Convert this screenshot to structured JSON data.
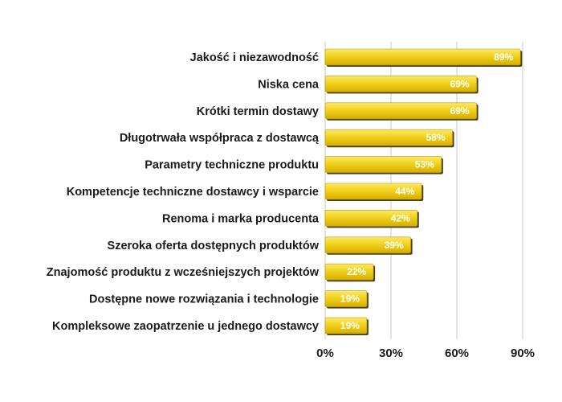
{
  "chart_data": {
    "type": "bar",
    "orientation": "horizontal",
    "title": "",
    "xlabel": "",
    "ylabel": "",
    "categories": [
      "Jakość i niezawodność",
      "Niska cena",
      "Krótki termin dostawy",
      "Długotrwała współpraca z dostawcą",
      "Parametry techniczne produktu",
      "Kompetencje techniczne dostawcy i wsparcie",
      "Renoma i marka producenta",
      "Szeroka oferta dostępnych produktów",
      "Znajomość produktu z wcześniejszych projektów",
      "Dostępne nowe rozwiązania i technologie",
      "Kompleksowe zaopatrzenie u jednego dostawcy"
    ],
    "values": [
      89,
      69,
      69,
      58,
      53,
      44,
      42,
      39,
      22,
      19,
      19
    ],
    "value_labels": [
      "89%",
      "69%",
      "69%",
      "58%",
      "53%",
      "44%",
      "42%",
      "39%",
      "22%",
      "19%",
      "19%"
    ],
    "xlim": [
      0,
      90
    ],
    "x_ticks": [
      0,
      30,
      60,
      90
    ],
    "x_tick_labels": [
      "0%",
      "30%",
      "60%",
      "90%"
    ],
    "grid": "vertical",
    "legend": "none",
    "colors": {
      "bar_top": "#f7de3a",
      "bar_bottom": "#d9b400",
      "bar_shadow": "#4a4020",
      "grid": "#c8c8c8",
      "text": "#1a1a1a",
      "value_text": "#ffffff"
    }
  }
}
